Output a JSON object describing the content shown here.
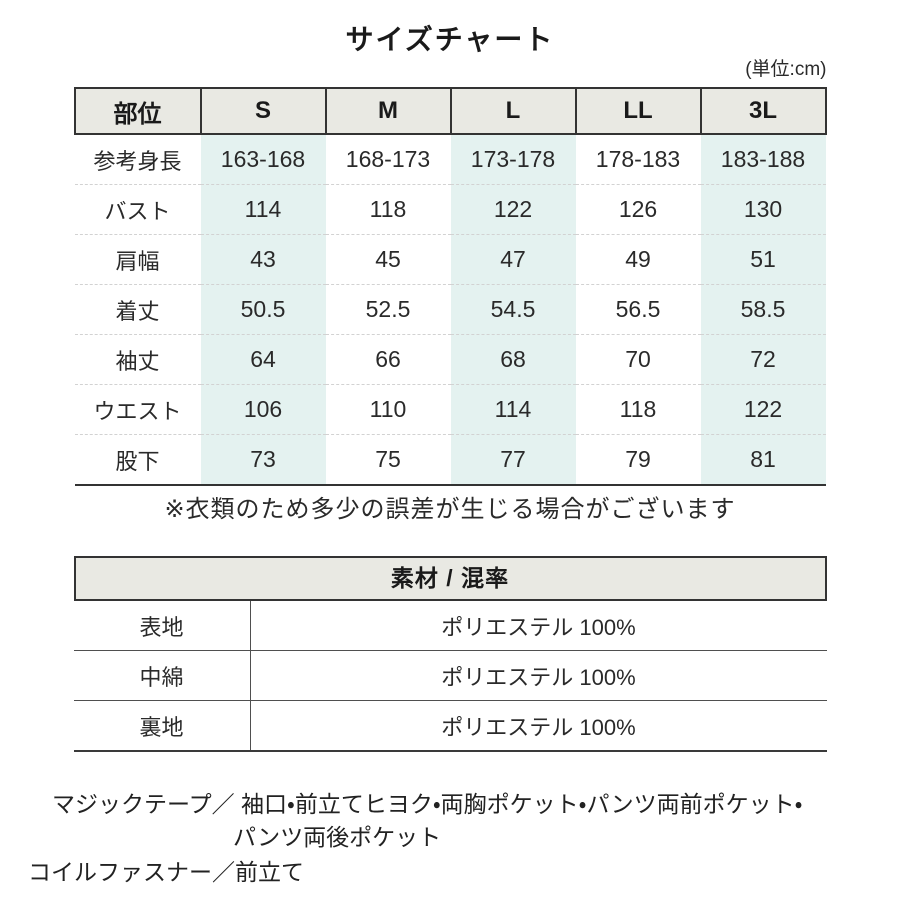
{
  "page": {
    "title": "サイズチャート",
    "unit_label": "(単位:cm)"
  },
  "size_table": {
    "header": [
      "部位",
      "S",
      "M",
      "L",
      "LL",
      "3L"
    ],
    "rows": [
      {
        "label": "参考身長",
        "values": [
          "163-168",
          "168-173",
          "173-178",
          "178-183",
          "183-188"
        ]
      },
      {
        "label": "バスト",
        "values": [
          "114",
          "118",
          "122",
          "126",
          "130"
        ]
      },
      {
        "label": "肩幅",
        "values": [
          "43",
          "45",
          "47",
          "49",
          "51"
        ]
      },
      {
        "label": "着丈",
        "values": [
          "50.5",
          "52.5",
          "54.5",
          "56.5",
          "58.5"
        ]
      },
      {
        "label": "袖丈",
        "values": [
          "64",
          "66",
          "68",
          "70",
          "72"
        ]
      },
      {
        "label": "ウエスト",
        "values": [
          "106",
          "110",
          "114",
          "118",
          "122"
        ]
      },
      {
        "label": "股下",
        "values": [
          "73",
          "75",
          "77",
          "79",
          "81"
        ]
      }
    ],
    "note": "※衣類のため多少の誤差が生じる場合がございます"
  },
  "material_table": {
    "header": "素材 / 混率",
    "rows": [
      {
        "label": "表地",
        "value": "ポリエステル 100%"
      },
      {
        "label": "中綿",
        "value": "ポリエステル 100%"
      },
      {
        "label": "裏地",
        "value": "ポリエステル 100%"
      }
    ]
  },
  "features": {
    "line1": "マジックテープ／ 袖口・前立てヒヨク・両胸ポケット・パンツ両前ポケット・",
    "line2": "パンツ両後ポケット",
    "line3": "コイルファスナー／前立て"
  },
  "colors": {
    "header_bg": "#e9e9e3",
    "stripe_bg": "#e4f2f0",
    "border_dark": "#333333",
    "row_line": "#4f4f4f",
    "dashed_line": "#d2d2d2",
    "text": "#222222"
  }
}
